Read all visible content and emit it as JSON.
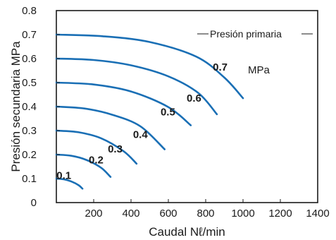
{
  "chart_data": {
    "type": "line",
    "xlabel": "Caudal Nℓ/min",
    "ylabel": "Presión secundaria MPa",
    "xlim": [
      0,
      1400
    ],
    "ylim": [
      0,
      0.8
    ],
    "xticks": [
      "200",
      "400",
      "600",
      "800",
      "1000",
      "1200",
      "1400"
    ],
    "yticks": [
      "0",
      "0.1",
      "0.2",
      "0.3",
      "0.4",
      "0.5",
      "0.6",
      "0.7",
      "0.8"
    ],
    "grid": false,
    "legend_label": "Presión primaria",
    "series_unit": "MPa",
    "color": "#1a6fb5",
    "series": [
      {
        "name": "0.1",
        "x": [
          0,
          40,
          80,
          120,
          140
        ],
        "y": [
          0.1,
          0.097,
          0.088,
          0.072,
          0.058
        ]
      },
      {
        "name": "0.2",
        "x": [
          0,
          80,
          160,
          240,
          290
        ],
        "y": [
          0.2,
          0.195,
          0.178,
          0.145,
          0.107
        ]
      },
      {
        "name": "0.3",
        "x": [
          0,
          120,
          240,
          360,
          430
        ],
        "y": [
          0.3,
          0.293,
          0.268,
          0.214,
          0.162
        ]
      },
      {
        "name": "0.4",
        "x": [
          0,
          150,
          300,
          450,
          580
        ],
        "y": [
          0.4,
          0.392,
          0.366,
          0.318,
          0.222
        ]
      },
      {
        "name": "0.5",
        "x": [
          0,
          200,
          400,
          600,
          720
        ],
        "y": [
          0.5,
          0.492,
          0.463,
          0.398,
          0.322
        ]
      },
      {
        "name": "0.6",
        "x": [
          0,
          200,
          400,
          600,
          760,
          860
        ],
        "y": [
          0.6,
          0.594,
          0.572,
          0.526,
          0.457,
          0.368
        ]
      },
      {
        "name": "0.7",
        "x": [
          0,
          250,
          500,
          750,
          900,
          1000
        ],
        "y": [
          0.7,
          0.693,
          0.669,
          0.608,
          0.521,
          0.435
        ]
      }
    ]
  }
}
